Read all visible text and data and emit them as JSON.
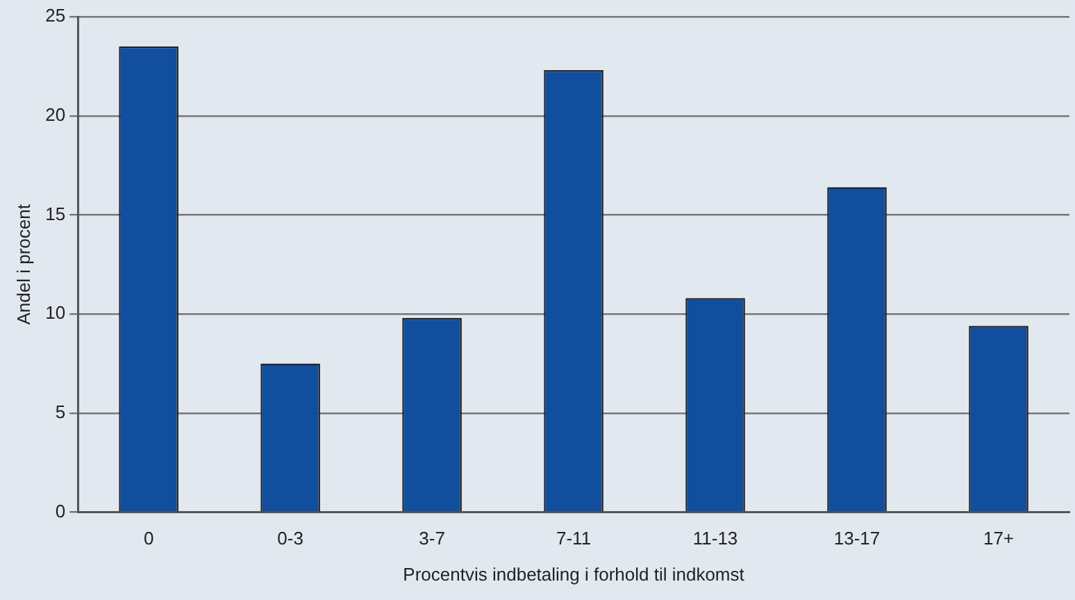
{
  "chart_data": {
    "type": "bar",
    "xlabel": "Procentvis indbetaling i forhold til indkomst",
    "ylabel": "Andel i procent",
    "categories": [
      "0",
      "0-3",
      "3-7",
      "7-11",
      "11-13",
      "13-17",
      "17+"
    ],
    "values": [
      23.5,
      7.5,
      9.8,
      22.3,
      10.8,
      16.4,
      9.4
    ],
    "color": "#114e9e",
    "ylim": [
      0,
      25
    ],
    "yticks": [
      0,
      5,
      10,
      15,
      20,
      25
    ],
    "grid": "y",
    "legend": false
  }
}
